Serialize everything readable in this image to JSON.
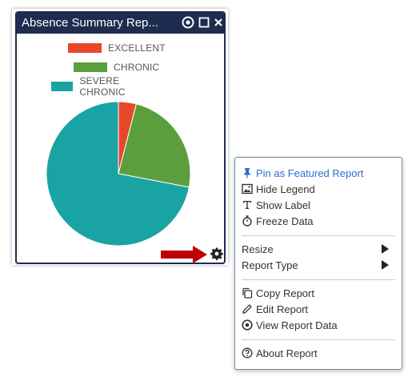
{
  "widget": {
    "title": "Absence Summary Rep...",
    "header_color": "#1d2c4f"
  },
  "chart_data": {
    "type": "pie",
    "title": "",
    "legend_placement": "top",
    "series": [
      {
        "name": "EXCELLENT",
        "value": 4,
        "color": "#e8472c"
      },
      {
        "name": "CHRONIC",
        "value": 24,
        "color": "#5a9e3e"
      },
      {
        "name": "SEVERE CHRONIC",
        "value": 72,
        "color": "#1aa3a3"
      }
    ]
  },
  "menu": {
    "items": [
      {
        "id": "pin",
        "label": "Pin as Featured Report",
        "icon": "pin-icon"
      },
      {
        "id": "hide_legend",
        "label": "Hide Legend",
        "icon": "image-icon"
      },
      {
        "id": "show_label",
        "label": "Show Label",
        "icon": "text-cursor-icon"
      },
      {
        "id": "freeze",
        "label": "Freeze Data",
        "icon": "stopwatch-icon"
      },
      {
        "id": "resize",
        "label": "Resize",
        "icon": "submenu-arrow"
      },
      {
        "id": "report_type",
        "label": "Report Type",
        "icon": "submenu-arrow"
      },
      {
        "id": "copy",
        "label": "Copy Report",
        "icon": "copy-icon"
      },
      {
        "id": "edit",
        "label": "Edit Report",
        "icon": "pencil-icon"
      },
      {
        "id": "view_data",
        "label": "View Report Data",
        "icon": "view-data-icon"
      },
      {
        "id": "about",
        "label": "About Report",
        "icon": "help-icon"
      }
    ]
  },
  "colors": {
    "menu_accent": "#2d6fc7",
    "arrow": "#c00000"
  }
}
